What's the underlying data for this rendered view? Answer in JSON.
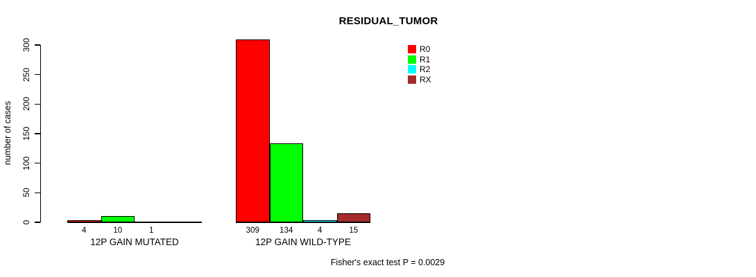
{
  "chart_data": {
    "type": "bar",
    "title": "RESIDUAL_TUMOR",
    "ylabel": "number of cases",
    "xlabel": "",
    "ylim": [
      0,
      300
    ],
    "yticks": [
      0,
      50,
      100,
      150,
      200,
      250,
      300
    ],
    "grid": false,
    "legend_position": "top-right-inside",
    "series": [
      {
        "name": "R0",
        "color": "#ff0000"
      },
      {
        "name": "R1",
        "color": "#00ff00"
      },
      {
        "name": "R2",
        "color": "#00ffff"
      },
      {
        "name": "RX",
        "color": "#a52a2a"
      }
    ],
    "groups": [
      {
        "label": "12P GAIN MUTATED",
        "values": [
          4,
          10,
          1,
          0
        ],
        "bar_labels": [
          "4",
          "10",
          "1",
          ""
        ]
      },
      {
        "label": "12P GAIN WILD-TYPE",
        "values": [
          309,
          134,
          4,
          15
        ],
        "bar_labels": [
          "309",
          "134",
          "4",
          "15"
        ]
      }
    ],
    "annotation": "Fisher's exact test P = 0.0029"
  }
}
